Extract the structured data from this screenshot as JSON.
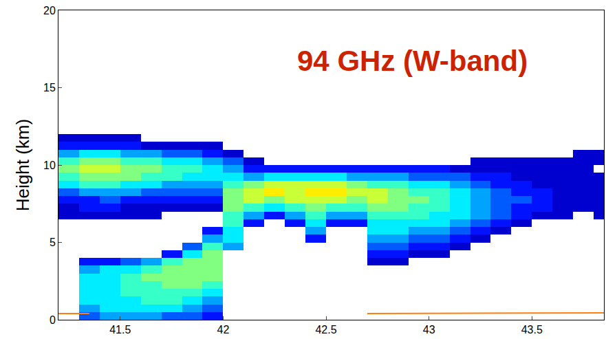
{
  "chart_data": {
    "type": "heatmap",
    "ylabel": "Height (km)",
    "annotations": [
      {
        "text": "94 GHz (W-band)",
        "x": 42.92,
        "y": 16.75,
        "color": "#cc2200"
      }
    ],
    "xlim": [
      41.2,
      43.85
    ],
    "xticks": [
      41.5,
      42,
      42.5,
      43,
      43.5
    ],
    "ylim": [
      0,
      20
    ],
    "yticks": [
      0,
      5,
      10,
      15,
      20
    ],
    "grid": false,
    "zlim": [
      0,
      14
    ],
    "x": [
      41.25,
      41.35,
      41.45,
      41.55,
      41.65,
      41.75,
      41.85,
      41.95,
      42.05,
      42.15,
      42.25,
      42.35,
      42.45,
      42.55,
      42.65,
      42.75,
      42.85,
      42.95,
      43.05,
      43.15,
      43.25,
      43.35,
      43.45,
      43.55,
      43.65,
      43.75,
      43.85
    ],
    "y": [
      0.25,
      0.75,
      1.25,
      1.75,
      2.25,
      2.75,
      3.25,
      3.75,
      4.25,
      4.75,
      5.25,
      5.75,
      6.25,
      6.75,
      7.25,
      7.75,
      8.25,
      8.75,
      9.25,
      9.75,
      10.25,
      10.75,
      11.25,
      11.75
    ],
    "z": [
      [
        null,
        3,
        4,
        4,
        4,
        3,
        3,
        2,
        null,
        null,
        null,
        null,
        null,
        null,
        null,
        null,
        null,
        null,
        null,
        null,
        null,
        null,
        null,
        null,
        null,
        null,
        null
      ],
      [
        null,
        4,
        5,
        5,
        5,
        5,
        4,
        3,
        null,
        null,
        null,
        null,
        null,
        null,
        null,
        null,
        null,
        null,
        null,
        null,
        null,
        null,
        null,
        null,
        null,
        null,
        null
      ],
      [
        null,
        5,
        5,
        5,
        6,
        6,
        5,
        4,
        null,
        null,
        null,
        null,
        null,
        null,
        null,
        null,
        null,
        null,
        null,
        null,
        null,
        null,
        null,
        null,
        null,
        null,
        null
      ],
      [
        null,
        5,
        5,
        6,
        6,
        6,
        6,
        5,
        null,
        null,
        null,
        null,
        null,
        null,
        null,
        null,
        null,
        null,
        null,
        null,
        null,
        null,
        null,
        null,
        null,
        null,
        null
      ],
      [
        null,
        5,
        5,
        6,
        6,
        7,
        7,
        6,
        null,
        null,
        null,
        null,
        null,
        null,
        null,
        null,
        null,
        null,
        null,
        null,
        null,
        null,
        null,
        null,
        null,
        null,
        null
      ],
      [
        null,
        5,
        5,
        6,
        7,
        7,
        7,
        7,
        null,
        null,
        null,
        null,
        null,
        null,
        null,
        null,
        null,
        null,
        null,
        null,
        null,
        null,
        null,
        null,
        null,
        null,
        null
      ],
      [
        null,
        4,
        5,
        5,
        6,
        7,
        7,
        7,
        null,
        null,
        null,
        null,
        null,
        null,
        null,
        null,
        null,
        null,
        null,
        null,
        null,
        null,
        null,
        null,
        null,
        null,
        null
      ],
      [
        null,
        2,
        2,
        3,
        4,
        6,
        7,
        7,
        null,
        null,
        null,
        null,
        null,
        null,
        null,
        1,
        1,
        null,
        null,
        null,
        null,
        null,
        null,
        null,
        null,
        null,
        null
      ],
      [
        null,
        null,
        null,
        null,
        null,
        2,
        5,
        7,
        null,
        null,
        null,
        null,
        null,
        null,
        null,
        2,
        2,
        1,
        1,
        null,
        null,
        null,
        null,
        null,
        null,
        null,
        null
      ],
      [
        null,
        null,
        null,
        null,
        null,
        null,
        3,
        6,
        4,
        null,
        null,
        null,
        null,
        null,
        null,
        3,
        3,
        2,
        2,
        1,
        null,
        null,
        null,
        null,
        null,
        null,
        null
      ],
      [
        null,
        null,
        null,
        null,
        null,
        null,
        null,
        4,
        5,
        null,
        null,
        null,
        2,
        null,
        null,
        4,
        4,
        3,
        3,
        2,
        1,
        null,
        null,
        null,
        null,
        null,
        null
      ],
      [
        null,
        null,
        null,
        null,
        null,
        null,
        null,
        2,
        5,
        null,
        null,
        null,
        4,
        null,
        null,
        5,
        5,
        4,
        4,
        3,
        2,
        1,
        null,
        null,
        null,
        null,
        null
      ],
      [
        null,
        null,
        null,
        null,
        null,
        null,
        null,
        null,
        6,
        2,
        null,
        2,
        5,
        2,
        2,
        5,
        5,
        5,
        5,
        4,
        3,
        2,
        1,
        null,
        null,
        null,
        null
      ],
      [
        1,
        1,
        1,
        1,
        1,
        null,
        null,
        null,
        6,
        4,
        2,
        4,
        6,
        4,
        4,
        6,
        6,
        6,
        5,
        5,
        4,
        3,
        2,
        1,
        1,
        null,
        1
      ],
      [
        1,
        2,
        2,
        1,
        1,
        1,
        1,
        1,
        7,
        6,
        5,
        6,
        7,
        6,
        6,
        7,
        7,
        6,
        6,
        5,
        4,
        3,
        2,
        2,
        1,
        1,
        1
      ],
      [
        2,
        2,
        3,
        2,
        2,
        2,
        2,
        2,
        7,
        8,
        7,
        8,
        8,
        8,
        7,
        8,
        7,
        7,
        6,
        5,
        4,
        3,
        3,
        2,
        1,
        1,
        1
      ],
      [
        3,
        4,
        4,
        4,
        3,
        3,
        3,
        3,
        7,
        8,
        9,
        8,
        9,
        9,
        8,
        8,
        7,
        6,
        6,
        5,
        4,
        3,
        2,
        2,
        1,
        1,
        1
      ],
      [
        5,
        6,
        6,
        5,
        5,
        4,
        4,
        4,
        6,
        7,
        8,
        8,
        8,
        8,
        7,
        6,
        6,
        5,
        5,
        4,
        3,
        2,
        2,
        1,
        1,
        1,
        1
      ],
      [
        6,
        7,
        7,
        7,
        6,
        6,
        5,
        5,
        5,
        4,
        5,
        5,
        5,
        5,
        4,
        4,
        4,
        3,
        3,
        3,
        2,
        2,
        1,
        1,
        1,
        1,
        1
      ],
      [
        7,
        8,
        8,
        7,
        7,
        6,
        6,
        5,
        4,
        2,
        2,
        2,
        2,
        2,
        2,
        2,
        2,
        2,
        2,
        1,
        1,
        1,
        1,
        1,
        1,
        1,
        null
      ],
      [
        6,
        7,
        7,
        6,
        6,
        5,
        5,
        4,
        3,
        1,
        null,
        null,
        null,
        null,
        null,
        null,
        null,
        null,
        null,
        null,
        1,
        1,
        1,
        1,
        1,
        1,
        1
      ],
      [
        4,
        5,
        5,
        4,
        4,
        3,
        3,
        2,
        1,
        null,
        null,
        null,
        null,
        null,
        null,
        null,
        null,
        null,
        null,
        null,
        null,
        null,
        null,
        null,
        null,
        1,
        1
      ],
      [
        2,
        2,
        2,
        2,
        1,
        1,
        1,
        1,
        null,
        null,
        null,
        null,
        null,
        null,
        null,
        null,
        null,
        null,
        null,
        null,
        null,
        null,
        null,
        null,
        null,
        null,
        null
      ],
      [
        1,
        1,
        1,
        1,
        null,
        null,
        null,
        null,
        null,
        null,
        null,
        null,
        null,
        null,
        null,
        null,
        null,
        null,
        null,
        null,
        null,
        null,
        null,
        null,
        null,
        null,
        null
      ]
    ],
    "lines": [
      {
        "color": "#ff7f0e",
        "x": [
          41.2,
          41.35,
          42.0,
          42.7,
          43.85
        ],
        "values": [
          0.4,
          0.4,
          null,
          0.4,
          0.45
        ]
      }
    ]
  }
}
